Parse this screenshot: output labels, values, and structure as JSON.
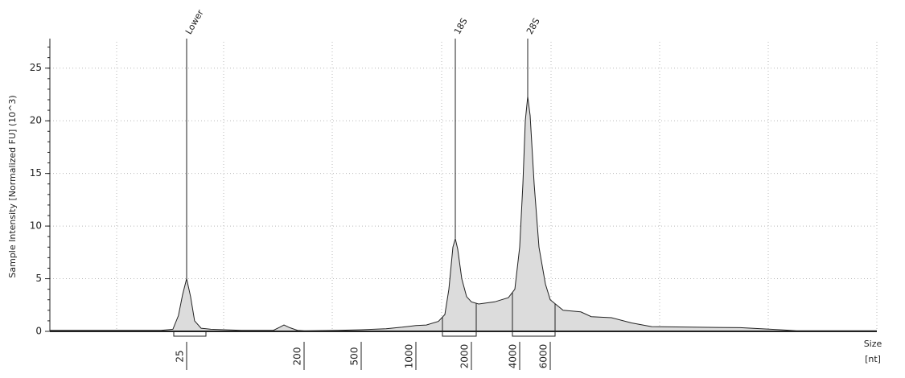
{
  "chart_data": {
    "type": "area",
    "y_label": "Sample Intensity [Normalized FU] (10^3)",
    "x_label": "Size",
    "x_unit": "[nt]",
    "x": [
      2,
      15.6,
      19.4,
      21.5,
      23.2,
      25,
      26.8,
      28.8,
      32.3,
      38.3,
      65.8,
      116,
      130,
      140,
      155,
      178,
      200,
      344,
      500,
      686,
      841,
      1000,
      1139,
      1325,
      1436,
      1510,
      1587,
      1636,
      1686,
      1773,
      1883,
      2000,
      2219,
      2796,
      3403,
      3732,
      4000,
      4175,
      4310,
      4450,
      4595,
      4846,
      5167,
      5627,
      6000,
      7080,
      8270,
      8890,
      10170,
      13170,
      17050,
      22080,
      37060,
      69000,
      115700,
      142300,
      400000
    ],
    "series": [
      {
        "color": "#dcdcdc",
        "values": [
          0.1,
          0.1,
          0.2,
          1.5,
          3.5,
          5.0,
          3.3,
          1.0,
          0.3,
          0.2,
          0.1,
          0.1,
          0.4,
          0.6,
          0.35,
          0.1,
          0.05,
          0.1,
          0.15,
          0.25,
          0.4,
          0.55,
          0.6,
          0.95,
          1.6,
          4.0,
          8.0,
          8.8,
          7.8,
          5.0,
          3.3,
          2.8,
          2.6,
          2.8,
          3.2,
          4.0,
          8,
          14,
          20,
          22.3,
          20.5,
          14,
          8,
          4.5,
          3.0,
          2.0,
          1.9,
          1.85,
          1.4,
          1.3,
          0.8,
          0.45,
          0.4,
          0.35,
          0.15,
          0.05,
          0.05
        ]
      }
    ],
    "peaks": [
      {
        "label": "Lower",
        "x": 25
      },
      {
        "label": "18S",
        "x": 1636
      },
      {
        "label": "28S",
        "x": 4450
      }
    ],
    "xlim": [
      2,
      400000
    ],
    "xticks": [
      25,
      200,
      500,
      1000,
      2000,
      4000,
      6000
    ],
    "ylim": [
      0,
      27.5
    ],
    "yticks": [
      0,
      5,
      10,
      15,
      20,
      25
    ],
    "grid": true
  }
}
